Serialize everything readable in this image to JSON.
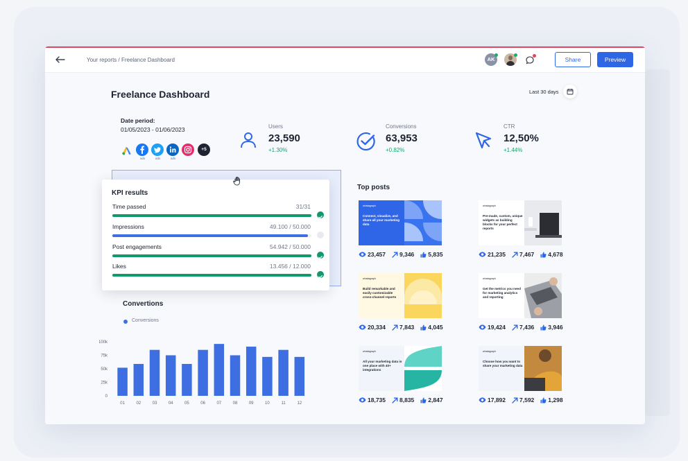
{
  "topbar": {
    "breadcrumb": "Your reports / Freelance Dashboard",
    "avatar_initials": "AK",
    "share_label": "Share",
    "preview_label": "Preview"
  },
  "header": {
    "title": "Freelance Dashboard",
    "range_label": "Last 30 days"
  },
  "period": {
    "label": "Date period:",
    "value": "01/05/2023 - 01/06/2023",
    "sources": [
      {
        "name": "google-ads-icon",
        "sub": ""
      },
      {
        "name": "facebook-icon",
        "sub": "ads"
      },
      {
        "name": "twitter-icon",
        "sub": "ads"
      },
      {
        "name": "linkedin-icon",
        "sub": "ads"
      },
      {
        "name": "instagram-icon",
        "sub": ""
      }
    ],
    "more_label": "+5"
  },
  "kpis": [
    {
      "label": "Users",
      "value": "23,590",
      "delta": "+1.30%"
    },
    {
      "label": "Conversions",
      "value": "63,953",
      "delta": "+0.82%"
    },
    {
      "label": "CTR",
      "value": "12,50%",
      "delta": "+1.44%"
    }
  ],
  "kpi_results": {
    "title": "KPI results",
    "rows": [
      {
        "name": "Time passed",
        "value": "31/31",
        "progress": 1.0,
        "color": "#12996b",
        "done": true
      },
      {
        "name": "Impressions",
        "value": "49.100 / 50.000",
        "progress": 0.982,
        "color": "#3d6fe3",
        "done": false
      },
      {
        "name": "Post engagements",
        "value": "54.942 / 50.000",
        "progress": 1.0,
        "color": "#12996b",
        "done": true
      },
      {
        "name": "Likes",
        "value": "13.456 / 12.000",
        "progress": 1.0,
        "color": "#12996b",
        "done": true
      }
    ]
  },
  "conversions": {
    "title": "Convertions",
    "legend": "Conversions"
  },
  "chart_data": {
    "type": "bar",
    "title": "Convertions",
    "categories": [
      "01",
      "02",
      "03",
      "04",
      "05",
      "06",
      "07",
      "08",
      "09",
      "10",
      "11",
      "12"
    ],
    "series": [
      {
        "name": "Conversions",
        "color": "#3d6fe3",
        "values": [
          52000,
          59000,
          85000,
          75000,
          59000,
          85000,
          96000,
          75000,
          91000,
          72000,
          85000,
          72000
        ]
      }
    ],
    "y_ticks": [
      "0",
      "25k",
      "50k",
      "75k",
      "100k"
    ],
    "ylim": [
      0,
      100000
    ],
    "grid": false,
    "legend_position": "top-left"
  },
  "top_posts": {
    "title": "Top posts",
    "items": [
      {
        "brand": "whatagraph",
        "text": "Connect, visualize, and share all your marketing data",
        "views": "23,457",
        "clicks": "9,346",
        "likes": "5,835"
      },
      {
        "brand": "whatagraph",
        "text": "Pre-made, custom, unique widgets as building blocks for your perfect reports",
        "views": "21,235",
        "clicks": "7,467",
        "likes": "4,678"
      },
      {
        "brand": "whatagraph",
        "text": "Build remarkable and easily customizable cross-channel reports",
        "views": "20,334",
        "clicks": "7,843",
        "likes": "4,045"
      },
      {
        "brand": "whatagraph",
        "text": "Get the metrics you need for marketing analytics and reporting",
        "views": "19,424",
        "clicks": "7,436",
        "likes": "3,946"
      },
      {
        "brand": "whatagraph",
        "text": "All your marketing data in one place with 40+ integrations",
        "views": "18,735",
        "clicks": "8,835",
        "likes": "2,847"
      },
      {
        "brand": "whatagraph",
        "text": "Choose how you want to share your marketing data",
        "views": "17,892",
        "clicks": "7,592",
        "likes": "1,298"
      }
    ]
  },
  "colors": {
    "accent": "#2e66e5",
    "positive": "#12a36a",
    "alert": "#e0475b"
  }
}
